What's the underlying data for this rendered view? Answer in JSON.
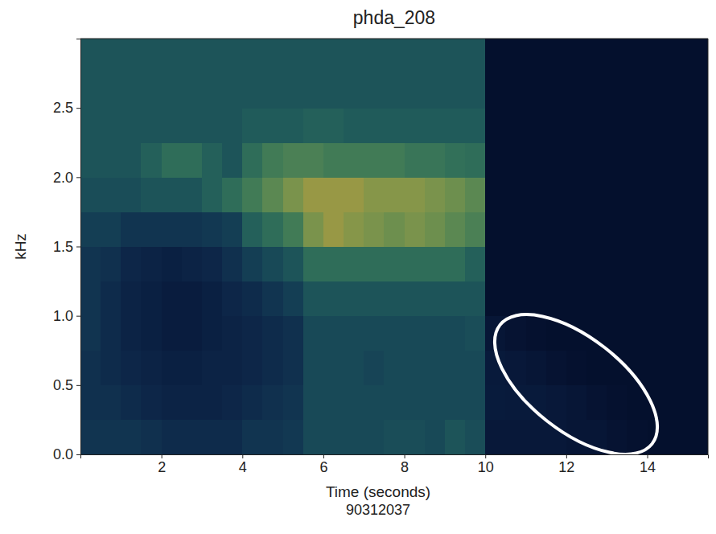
{
  "chart_data": {
    "type": "heatmap",
    "title": "phda_208",
    "x_label": "Time (seconds)",
    "y_label": "kHz",
    "subtitle": "90312037",
    "xlim": [
      0,
      15.5
    ],
    "ylim": [
      0,
      3
    ],
    "xticks": [
      2,
      4,
      6,
      8,
      10,
      12,
      14
    ],
    "yticks": [
      {
        "value": 0,
        "label": "0.0"
      },
      0.5,
      {
        "value": 1,
        "label": "1.0"
      },
      1.5,
      {
        "value": 2,
        "label": "2.0"
      },
      2.5
    ],
    "x_edges": [
      0,
      0.5,
      1,
      1.5,
      2,
      2.5,
      3,
      3.5,
      4,
      4.5,
      5,
      5.5,
      6,
      6.5,
      7,
      7.5,
      8,
      8.5,
      9,
      9.5,
      10,
      10.5,
      11,
      11.5,
      12,
      12.5,
      13,
      13.5,
      14,
      14.5,
      15,
      15.5
    ],
    "y_edges": [
      0,
      0.25,
      0.5,
      0.75,
      1,
      1.25,
      1.5,
      1.75,
      2,
      2.25,
      2.5,
      2.75,
      3
    ],
    "zlim": [
      0,
      1
    ],
    "z": [
      [
        0.3,
        0.3,
        0.3,
        0.28,
        0.25,
        0.25,
        0.25,
        0.25,
        0.3,
        0.3,
        0.32,
        0.4,
        0.4,
        0.4,
        0.4,
        0.42,
        0.42,
        0.4,
        0.45,
        0.42,
        0.12,
        0.12,
        0.12,
        0.12,
        0.1,
        0.1,
        0.08,
        0.06,
        0.05,
        0.05,
        0.05
      ],
      [
        0.28,
        0.28,
        0.25,
        0.22,
        0.2,
        0.2,
        0.2,
        0.22,
        0.25,
        0.28,
        0.3,
        0.4,
        0.4,
        0.4,
        0.4,
        0.4,
        0.4,
        0.4,
        0.4,
        0.4,
        0.14,
        0.13,
        0.13,
        0.12,
        0.1,
        0.08,
        0.06,
        0.05,
        0.05,
        0.05,
        0.05
      ],
      [
        0.28,
        0.25,
        0.22,
        0.2,
        0.18,
        0.18,
        0.2,
        0.2,
        0.22,
        0.25,
        0.28,
        0.4,
        0.4,
        0.4,
        0.38,
        0.4,
        0.4,
        0.4,
        0.4,
        0.4,
        0.13,
        0.12,
        0.1,
        0.08,
        0.06,
        0.05,
        0.05,
        0.05,
        0.05,
        0.05,
        0.05
      ],
      [
        0.3,
        0.25,
        0.2,
        0.18,
        0.15,
        0.15,
        0.18,
        0.2,
        0.22,
        0.25,
        0.28,
        0.4,
        0.4,
        0.4,
        0.4,
        0.4,
        0.4,
        0.4,
        0.4,
        0.42,
        0.1,
        0.08,
        0.06,
        0.05,
        0.05,
        0.05,
        0.05,
        0.05,
        0.05,
        0.05,
        0.05
      ],
      [
        0.3,
        0.25,
        0.2,
        0.18,
        0.15,
        0.15,
        0.18,
        0.22,
        0.25,
        0.3,
        0.35,
        0.45,
        0.45,
        0.45,
        0.45,
        0.45,
        0.45,
        0.45,
        0.45,
        0.45,
        0.05,
        0.05,
        0.05,
        0.05,
        0.05,
        0.05,
        0.05,
        0.05,
        0.05,
        0.05,
        0.05
      ],
      [
        0.3,
        0.28,
        0.22,
        0.2,
        0.18,
        0.2,
        0.22,
        0.28,
        0.35,
        0.4,
        0.45,
        0.55,
        0.55,
        0.55,
        0.55,
        0.55,
        0.55,
        0.55,
        0.55,
        0.5,
        0.05,
        0.05,
        0.05,
        0.05,
        0.05,
        0.05,
        0.05,
        0.05,
        0.05,
        0.05,
        0.05
      ],
      [
        0.35,
        0.35,
        0.3,
        0.3,
        0.3,
        0.3,
        0.32,
        0.35,
        0.5,
        0.55,
        0.6,
        0.7,
        0.75,
        0.72,
        0.7,
        0.68,
        0.7,
        0.68,
        0.65,
        0.62,
        0.05,
        0.05,
        0.05,
        0.05,
        0.05,
        0.05,
        0.05,
        0.05,
        0.05,
        0.05,
        0.05
      ],
      [
        0.42,
        0.42,
        0.42,
        0.45,
        0.45,
        0.45,
        0.5,
        0.55,
        0.6,
        0.65,
        0.7,
        0.75,
        0.75,
        0.75,
        0.72,
        0.72,
        0.72,
        0.7,
        0.68,
        0.65,
        0.05,
        0.05,
        0.05,
        0.05,
        0.05,
        0.05,
        0.05,
        0.05,
        0.05,
        0.05,
        0.05
      ],
      [
        0.45,
        0.45,
        0.45,
        0.5,
        0.55,
        0.55,
        0.5,
        0.45,
        0.55,
        0.6,
        0.62,
        0.62,
        0.6,
        0.6,
        0.6,
        0.6,
        0.58,
        0.58,
        0.56,
        0.55,
        0.05,
        0.05,
        0.05,
        0.05,
        0.05,
        0.05,
        0.05,
        0.05,
        0.05,
        0.05,
        0.05
      ],
      [
        0.45,
        0.45,
        0.45,
        0.45,
        0.45,
        0.45,
        0.45,
        0.45,
        0.48,
        0.48,
        0.48,
        0.5,
        0.5,
        0.48,
        0.48,
        0.48,
        0.48,
        0.48,
        0.48,
        0.48,
        0.05,
        0.05,
        0.05,
        0.05,
        0.05,
        0.05,
        0.05,
        0.05,
        0.05,
        0.05,
        0.05
      ],
      [
        0.45,
        0.45,
        0.45,
        0.45,
        0.45,
        0.45,
        0.45,
        0.45,
        0.45,
        0.45,
        0.45,
        0.45,
        0.45,
        0.45,
        0.45,
        0.45,
        0.45,
        0.45,
        0.45,
        0.45,
        0.05,
        0.05,
        0.05,
        0.05,
        0.05,
        0.05,
        0.05,
        0.05,
        0.05,
        0.05,
        0.05
      ],
      [
        0.45,
        0.45,
        0.45,
        0.45,
        0.45,
        0.45,
        0.45,
        0.45,
        0.45,
        0.45,
        0.45,
        0.45,
        0.45,
        0.45,
        0.45,
        0.45,
        0.45,
        0.45,
        0.45,
        0.45,
        0.05,
        0.05,
        0.05,
        0.05,
        0.05,
        0.05,
        0.05,
        0.05,
        0.05,
        0.05,
        0.05
      ]
    ]
  }
}
